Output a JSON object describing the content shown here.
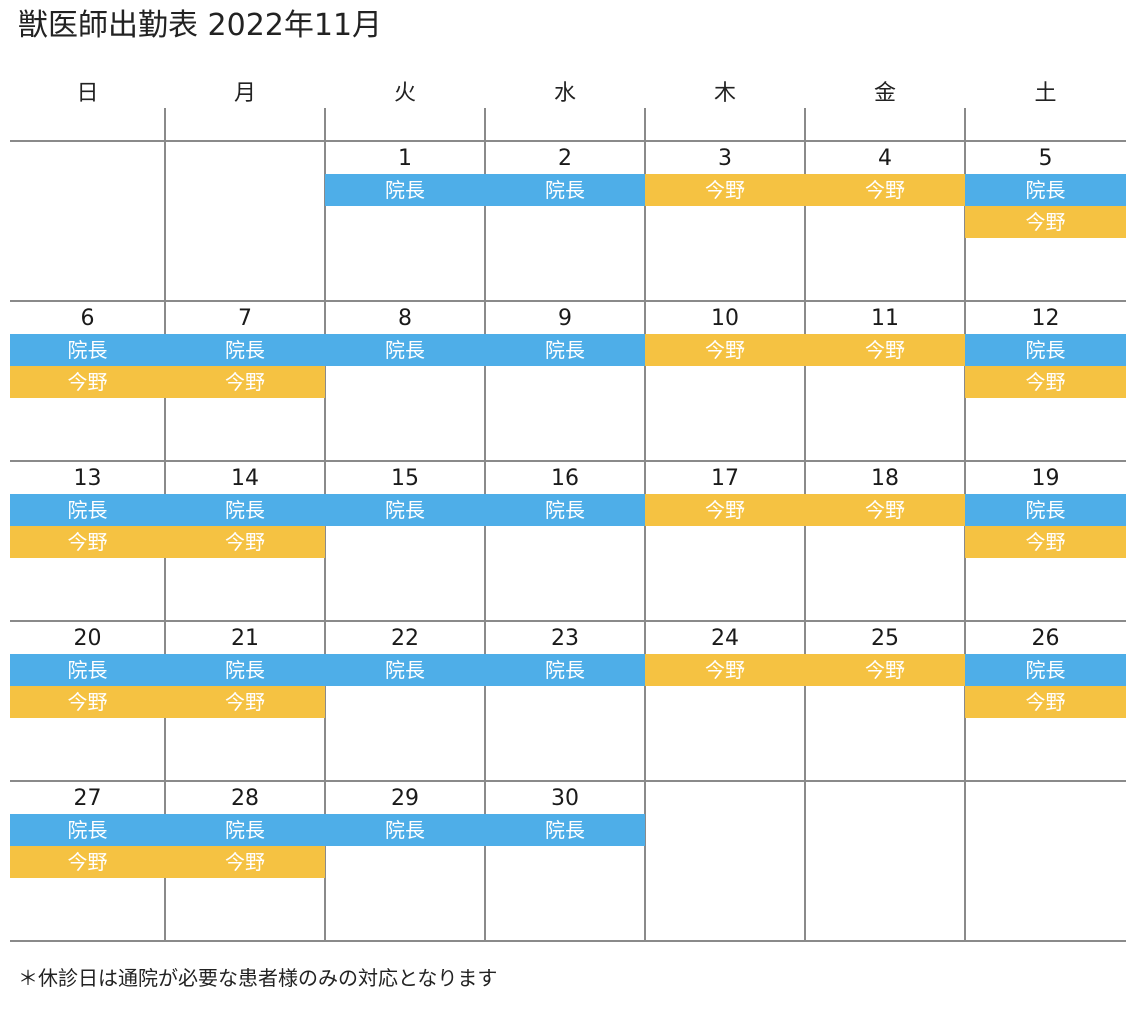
{
  "title": "獣医師出勤表 2022年11月",
  "weekdays": [
    "日",
    "月",
    "火",
    "水",
    "木",
    "金",
    "土"
  ],
  "colors": {
    "director": "#4eaee8",
    "konno": "#f5c242",
    "grid": "#8a8a8a"
  },
  "labels": {
    "director": "院長",
    "konno": "今野"
  },
  "weeks": [
    [
      {
        "day": "",
        "shifts": []
      },
      {
        "day": "",
        "shifts": []
      },
      {
        "day": "1",
        "shifts": [
          "director"
        ]
      },
      {
        "day": "2",
        "shifts": [
          "director"
        ]
      },
      {
        "day": "3",
        "shifts": [
          "konno"
        ]
      },
      {
        "day": "4",
        "shifts": [
          "konno"
        ]
      },
      {
        "day": "5",
        "shifts": [
          "director",
          "konno"
        ]
      }
    ],
    [
      {
        "day": "6",
        "shifts": [
          "director",
          "konno"
        ]
      },
      {
        "day": "7",
        "shifts": [
          "director",
          "konno"
        ]
      },
      {
        "day": "8",
        "shifts": [
          "director"
        ]
      },
      {
        "day": "9",
        "shifts": [
          "director"
        ]
      },
      {
        "day": "10",
        "shifts": [
          "konno"
        ]
      },
      {
        "day": "11",
        "shifts": [
          "konno"
        ]
      },
      {
        "day": "12",
        "shifts": [
          "director",
          "konno"
        ]
      }
    ],
    [
      {
        "day": "13",
        "shifts": [
          "director",
          "konno"
        ]
      },
      {
        "day": "14",
        "shifts": [
          "director",
          "konno"
        ]
      },
      {
        "day": "15",
        "shifts": [
          "director"
        ]
      },
      {
        "day": "16",
        "shifts": [
          "director"
        ]
      },
      {
        "day": "17",
        "shifts": [
          "konno"
        ]
      },
      {
        "day": "18",
        "shifts": [
          "konno"
        ]
      },
      {
        "day": "19",
        "shifts": [
          "director",
          "konno"
        ]
      }
    ],
    [
      {
        "day": "20",
        "shifts": [
          "director",
          "konno"
        ]
      },
      {
        "day": "21",
        "shifts": [
          "director",
          "konno"
        ]
      },
      {
        "day": "22",
        "shifts": [
          "director"
        ]
      },
      {
        "day": "23",
        "shifts": [
          "director"
        ]
      },
      {
        "day": "24",
        "shifts": [
          "konno"
        ]
      },
      {
        "day": "25",
        "shifts": [
          "konno"
        ]
      },
      {
        "day": "26",
        "shifts": [
          "director",
          "konno"
        ]
      }
    ],
    [
      {
        "day": "27",
        "shifts": [
          "director",
          "konno"
        ]
      },
      {
        "day": "28",
        "shifts": [
          "director",
          "konno"
        ]
      },
      {
        "day": "29",
        "shifts": [
          "director"
        ]
      },
      {
        "day": "30",
        "shifts": [
          "director"
        ]
      },
      {
        "day": "",
        "shifts": []
      },
      {
        "day": "",
        "shifts": []
      },
      {
        "day": "",
        "shifts": []
      }
    ]
  ],
  "note": "＊休診日は通院が必要な患者様のみの対応となります"
}
